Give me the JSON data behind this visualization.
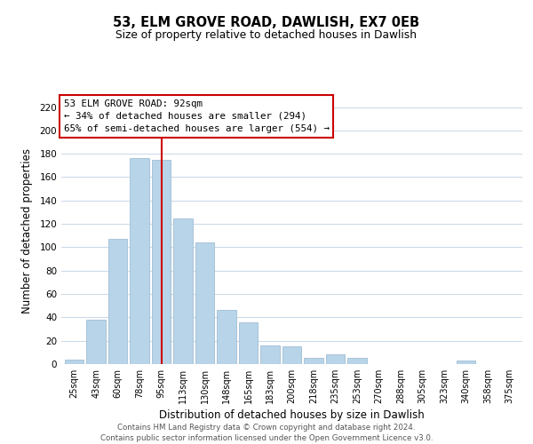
{
  "title": "53, ELM GROVE ROAD, DAWLISH, EX7 0EB",
  "subtitle": "Size of property relative to detached houses in Dawlish",
  "xlabel": "Distribution of detached houses by size in Dawlish",
  "ylabel": "Number of detached properties",
  "bar_color": "#b8d4e8",
  "bar_edge_color": "#a0bdd4",
  "categories": [
    "25sqm",
    "43sqm",
    "60sqm",
    "78sqm",
    "95sqm",
    "113sqm",
    "130sqm",
    "148sqm",
    "165sqm",
    "183sqm",
    "200sqm",
    "218sqm",
    "235sqm",
    "253sqm",
    "270sqm",
    "288sqm",
    "305sqm",
    "323sqm",
    "340sqm",
    "358sqm",
    "375sqm"
  ],
  "values": [
    4,
    38,
    107,
    176,
    175,
    125,
    104,
    46,
    36,
    16,
    15,
    5,
    8,
    5,
    0,
    0,
    0,
    0,
    3,
    0,
    0
  ],
  "ylim": [
    0,
    228
  ],
  "yticks": [
    0,
    20,
    40,
    60,
    80,
    100,
    120,
    140,
    160,
    180,
    200,
    220
  ],
  "vline_x": 4,
  "vline_color": "#cc0000",
  "annotation_title": "53 ELM GROVE ROAD: 92sqm",
  "annotation_line1": "← 34% of detached houses are smaller (294)",
  "annotation_line2": "65% of semi-detached houses are larger (554) →",
  "annotation_box_edge": "#cc0000",
  "footer_line1": "Contains HM Land Registry data © Crown copyright and database right 2024.",
  "footer_line2": "Contains public sector information licensed under the Open Government Licence v3.0.",
  "background_color": "#ffffff",
  "grid_color": "#c8d8e8"
}
